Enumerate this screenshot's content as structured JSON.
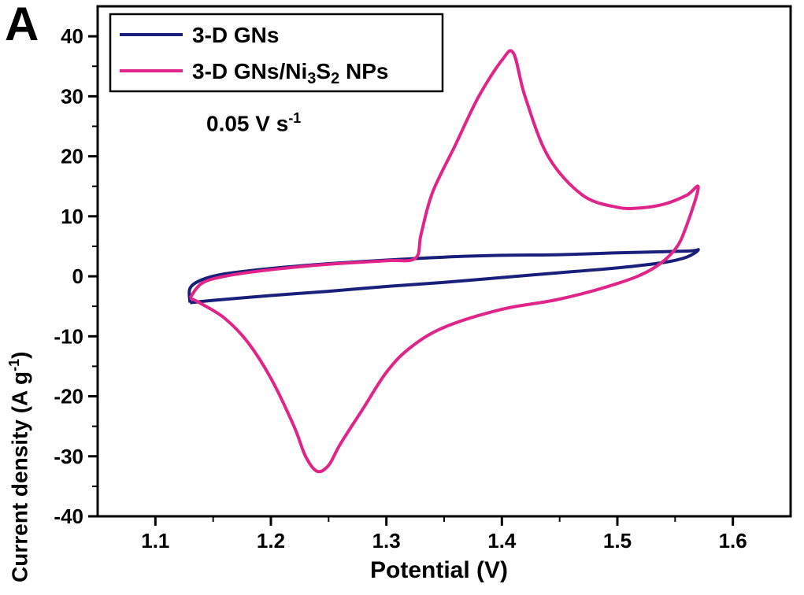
{
  "panel_label": "A",
  "chart_data": {
    "type": "line",
    "title": "",
    "xlabel": "Potential (V)",
    "ylabel": "Current density (A g",
    "ylabel_sup": "-1",
    "ylabel_end": ")",
    "xlim": [
      1.05,
      1.65
    ],
    "ylim": [
      -40,
      45
    ],
    "x_ticks": [
      "1.1",
      "1.2",
      "1.3",
      "1.4",
      "1.5",
      "1.6"
    ],
    "y_ticks": [
      "40",
      "30",
      "20",
      "10",
      "0",
      "-10",
      "-20",
      "-30",
      "-40"
    ],
    "x_tick_values": [
      1.1,
      1.2,
      1.3,
      1.4,
      1.5,
      1.6
    ],
    "y_tick_values": [
      40,
      30,
      20,
      10,
      0,
      -10,
      -20,
      -30,
      -40
    ],
    "annotation": "0.05 V s",
    "annotation_sup": "-1",
    "legend_position": "top-left",
    "series": [
      {
        "name": "3-D GNs",
        "color": "#1a1f7a",
        "points": [
          [
            1.13,
            -4.4
          ],
          [
            1.15,
            -4.0
          ],
          [
            1.2,
            -3.2
          ],
          [
            1.25,
            -2.5
          ],
          [
            1.3,
            -1.7
          ],
          [
            1.35,
            -1.0
          ],
          [
            1.4,
            -0.2
          ],
          [
            1.45,
            0.6
          ],
          [
            1.5,
            1.4
          ],
          [
            1.54,
            2.3
          ],
          [
            1.56,
            3.2
          ],
          [
            1.57,
            4.4
          ],
          [
            1.56,
            4.2
          ],
          [
            1.5,
            3.9
          ],
          [
            1.45,
            3.6
          ],
          [
            1.4,
            3.5
          ],
          [
            1.35,
            3.2
          ],
          [
            1.3,
            2.7
          ],
          [
            1.25,
            2.1
          ],
          [
            1.2,
            1.3
          ],
          [
            1.16,
            0.4
          ],
          [
            1.14,
            -0.6
          ],
          [
            1.13,
            -2.0
          ],
          [
            1.13,
            -4.4
          ]
        ]
      },
      {
        "name": "3-D GNs/Ni3S2 NPs",
        "name_parts": [
          "3-D GNs/Ni",
          "3",
          "S",
          "2",
          " NPs"
        ],
        "color": "#e0248a",
        "points": [
          [
            1.13,
            -3.6
          ],
          [
            1.14,
            -4.6
          ],
          [
            1.16,
            -7.0
          ],
          [
            1.18,
            -11.0
          ],
          [
            1.2,
            -17.0
          ],
          [
            1.22,
            -25.0
          ],
          [
            1.23,
            -30.0
          ],
          [
            1.24,
            -32.5
          ],
          [
            1.25,
            -31.5
          ],
          [
            1.26,
            -28.0
          ],
          [
            1.28,
            -22.0
          ],
          [
            1.3,
            -16.0
          ],
          [
            1.32,
            -12.0
          ],
          [
            1.35,
            -8.5
          ],
          [
            1.4,
            -5.5
          ],
          [
            1.45,
            -3.8
          ],
          [
            1.5,
            -1.2
          ],
          [
            1.53,
            1.2
          ],
          [
            1.55,
            4.5
          ],
          [
            1.56,
            8.5
          ],
          [
            1.57,
            14.8
          ],
          [
            1.56,
            13.5
          ],
          [
            1.54,
            12.0
          ],
          [
            1.52,
            11.4
          ],
          [
            1.5,
            11.5
          ],
          [
            1.47,
            13.5
          ],
          [
            1.44,
            20.0
          ],
          [
            1.42,
            30.0
          ],
          [
            1.41,
            37.2
          ],
          [
            1.4,
            36.0
          ],
          [
            1.38,
            30.0
          ],
          [
            1.36,
            22.0
          ],
          [
            1.34,
            14.0
          ],
          [
            1.33,
            7.0
          ],
          [
            1.325,
            3.0
          ],
          [
            1.3,
            2.6
          ],
          [
            1.25,
            2.0
          ],
          [
            1.2,
            1.1
          ],
          [
            1.16,
            0.0
          ],
          [
            1.14,
            -1.2
          ],
          [
            1.13,
            -3.6
          ]
        ]
      }
    ]
  }
}
